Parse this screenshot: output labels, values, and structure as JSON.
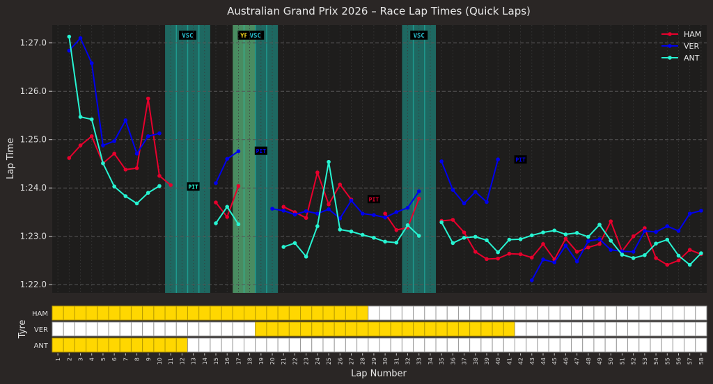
{
  "chart_data": [
    {
      "type": "line",
      "title": "Australian Grand Prix 2026 – Race Lap Times (Quick Laps)",
      "xlabel": "Lap Number",
      "ylabel": "Lap Time",
      "xlim": [
        0.5,
        58.5
      ],
      "ylim": [
        81.83,
        87.37
      ],
      "y_unit": "seconds",
      "yticks": [
        82,
        83,
        84,
        85,
        86,
        87
      ],
      "ytick_labels": [
        "1:22.0",
        "1:23.0",
        "1:24.0",
        "1:25.0",
        "1:26.0",
        "1:27.0"
      ],
      "grid": true,
      "legend_position": "top-right",
      "series": [
        {
          "name": "HAM",
          "color": "#e8002d",
          "laps": [
            2,
            3,
            4,
            5,
            6,
            7,
            8,
            9,
            10,
            11,
            15,
            16,
            17,
            21,
            22,
            23,
            24,
            25,
            26,
            27,
            30,
            31,
            32,
            33,
            35,
            36,
            37,
            38,
            39,
            40,
            41,
            42,
            43,
            44,
            45,
            46,
            47,
            48,
            49,
            50,
            51,
            52,
            53,
            54,
            55,
            56,
            57,
            58
          ],
          "values": [
            84.62,
            84.88,
            85.07,
            84.51,
            84.71,
            84.38,
            84.41,
            85.85,
            84.25,
            84.06,
            83.7,
            83.4,
            84.04,
            83.61,
            83.5,
            83.38,
            84.32,
            83.66,
            84.07,
            83.76,
            83.47,
            83.13,
            83.18,
            83.78,
            83.32,
            83.34,
            83.08,
            82.68,
            82.53,
            82.54,
            82.64,
            82.63,
            82.56,
            82.84,
            82.52,
            82.95,
            82.68,
            82.77,
            82.84,
            83.31,
            82.69,
            83.0,
            83.17,
            82.55,
            82.41,
            82.5,
            82.72,
            82.63
          ]
        },
        {
          "name": "VER",
          "color": "#0000ee",
          "laps": [
            2,
            3,
            4,
            5,
            6,
            7,
            8,
            9,
            10,
            15,
            16,
            17,
            20,
            21,
            22,
            23,
            24,
            25,
            26,
            27,
            28,
            29,
            30,
            31,
            32,
            33,
            35,
            36,
            37,
            38,
            39,
            40,
            43,
            44,
            45,
            46,
            47,
            48,
            49,
            50,
            51,
            52,
            53,
            54,
            55,
            56,
            57,
            58
          ],
          "values": [
            86.84,
            87.1,
            86.58,
            84.88,
            84.97,
            85.4,
            84.71,
            85.07,
            85.13,
            84.1,
            84.6,
            84.76,
            83.57,
            83.53,
            83.45,
            83.52,
            83.47,
            83.56,
            83.37,
            83.74,
            83.47,
            83.44,
            83.39,
            83.5,
            83.59,
            83.93,
            84.55,
            83.96,
            83.68,
            83.92,
            83.71,
            84.59,
            82.09,
            82.52,
            82.46,
            82.81,
            82.48,
            82.9,
            82.94,
            82.72,
            82.69,
            82.68,
            83.11,
            83.09,
            83.21,
            83.11,
            83.47,
            83.53
          ]
        },
        {
          "name": "ANT",
          "color": "#27f4d2",
          "laps": [
            2,
            3,
            4,
            5,
            6,
            7,
            8,
            9,
            10,
            15,
            16,
            17,
            21,
            22,
            23,
            24,
            25,
            26,
            27,
            28,
            29,
            30,
            31,
            32,
            33,
            35,
            36,
            37,
            38,
            39,
            40,
            41,
            42,
            43,
            44,
            45,
            46,
            47,
            48,
            49,
            50,
            51,
            52,
            53,
            54,
            55,
            56,
            57,
            58
          ],
          "values": [
            87.13,
            85.47,
            85.42,
            84.51,
            84.03,
            83.83,
            83.68,
            83.9,
            84.04,
            83.27,
            83.61,
            83.25,
            82.78,
            82.86,
            82.58,
            83.21,
            84.54,
            83.14,
            83.1,
            83.03,
            82.97,
            82.89,
            82.87,
            83.23,
            83.01,
            83.29,
            82.86,
            82.97,
            82.99,
            82.92,
            82.67,
            82.93,
            82.94,
            83.02,
            83.08,
            83.12,
            83.04,
            83.07,
            82.99,
            83.24,
            82.91,
            82.62,
            82.55,
            82.61,
            82.85,
            82.93,
            82.6,
            82.41,
            82.65
          ]
        }
      ],
      "track_status": [
        {
          "label": "VSC",
          "from_lap": 11,
          "to_lap": 14,
          "color": "#1fa69a"
        },
        {
          "label": "YF",
          "from_lap": 17,
          "to_lap": 18,
          "color": "#f2d21b"
        },
        {
          "label": "VSC",
          "from_lap": 17,
          "to_lap": 20,
          "color": "#1fa69a"
        },
        {
          "label": "VSC",
          "from_lap": 32,
          "to_lap": 34,
          "color": "#1fa69a"
        }
      ],
      "annotations": [
        {
          "text": "PIT",
          "driver": "ANT",
          "lap": 13,
          "value": 84.03
        },
        {
          "text": "PIT",
          "driver": "VER",
          "lap": 19,
          "value": 84.77
        },
        {
          "text": "PIT",
          "driver": "HAM",
          "lap": 29,
          "value": 83.77
        },
        {
          "text": "PIT",
          "driver": "VER",
          "lap": 42,
          "value": 84.59
        }
      ]
    },
    {
      "type": "heatmap",
      "ylabel": "Tyre",
      "xlabel": "Lap Number",
      "laps_total": 58,
      "compound_colors": {
        "MEDIUM": "#ffd700",
        "HARD": "#ffffff"
      },
      "rows": [
        {
          "driver": "HAM",
          "stints": [
            {
              "compound": "MEDIUM",
              "from": 1,
              "to": 28
            },
            {
              "compound": "HARD",
              "from": 29,
              "to": 58
            }
          ]
        },
        {
          "driver": "VER",
          "stints": [
            {
              "compound": "HARD",
              "from": 1,
              "to": 18
            },
            {
              "compound": "MEDIUM",
              "from": 19,
              "to": 41
            },
            {
              "compound": "HARD",
              "from": 42,
              "to": 58
            }
          ]
        },
        {
          "driver": "ANT",
          "stints": [
            {
              "compound": "MEDIUM",
              "from": 1,
              "to": 12
            },
            {
              "compound": "HARD",
              "from": 13,
              "to": 58
            }
          ]
        }
      ]
    }
  ]
}
